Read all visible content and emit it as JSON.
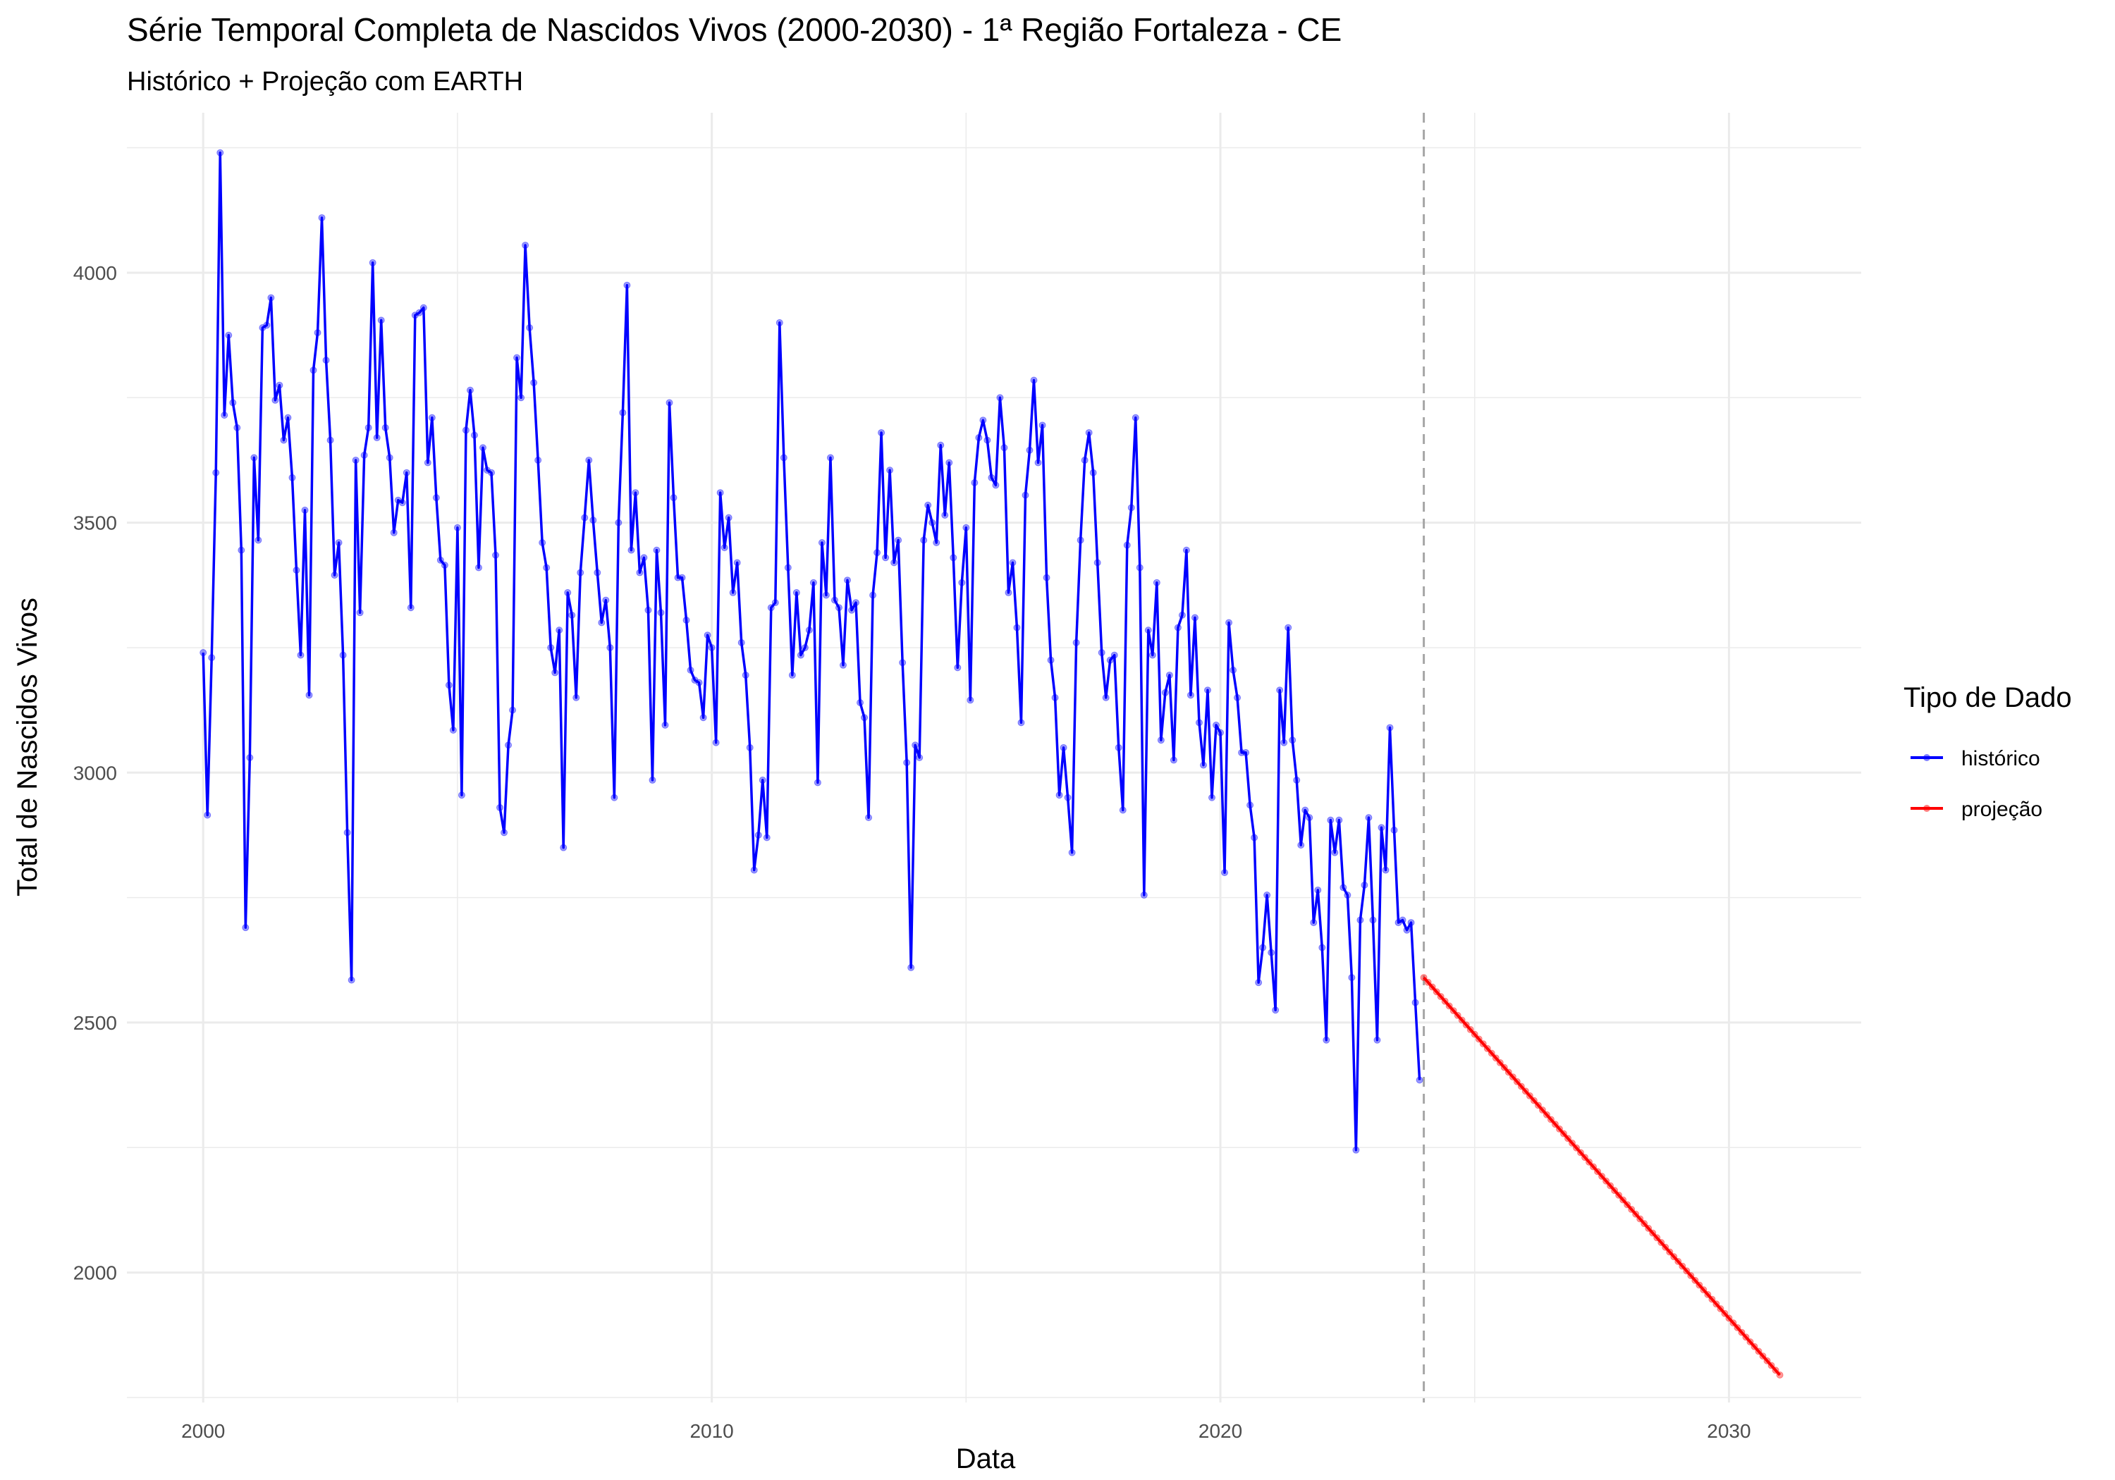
{
  "chart_data": {
    "type": "line",
    "title": "Série Temporal Completa de Nascidos Vivos (2000-2030) -  1ª Região Fortaleza - CE",
    "subtitle": "Histórico + Projeção com EARTH",
    "xlabel": "Data",
    "ylabel": "Total de Nascidos Vivos",
    "xlim": [
      1998.5,
      2032.6
    ],
    "ylim": [
      1740,
      4320
    ],
    "x_ticks": [
      2000,
      2010,
      2020,
      2030
    ],
    "x_tick_labels": [
      "2000",
      "2010",
      "2020",
      "2030"
    ],
    "y_ticks": [
      2000,
      2500,
      3000,
      3500,
      4000
    ],
    "y_tick_labels": [
      "2000",
      "2500",
      "3000",
      "3500",
      "4000"
    ],
    "grid": true,
    "legend_position": "right",
    "legend_title": "Tipo de Dado",
    "vline": {
      "x": 2024.0,
      "style": "dashed",
      "color": "#a6a6a6"
    },
    "series": [
      {
        "name": "histórico",
        "color": "#0000ff",
        "x_start": 2000.0,
        "x_step": 0.0833333,
        "values": [
          3240,
          2915,
          3230,
          3600,
          4240,
          3715,
          3875,
          3740,
          3690,
          3445,
          2690,
          3030,
          3630,
          3465,
          3890,
          3895,
          3950,
          3745,
          3775,
          3665,
          3710,
          3590,
          3405,
          3235,
          3525,
          3155,
          3805,
          3880,
          4110,
          3825,
          3665,
          3395,
          3460,
          3235,
          2880,
          2585,
          3625,
          3320,
          3635,
          3690,
          4020,
          3670,
          3905,
          3690,
          3630,
          3480,
          3545,
          3540,
          3600,
          3330,
          3915,
          3920,
          3930,
          3620,
          3710,
          3550,
          3425,
          3415,
          3175,
          3085,
          3490,
          2955,
          3685,
          3765,
          3675,
          3410,
          3650,
          3605,
          3600,
          3435,
          2930,
          2880,
          3055,
          3125,
          3830,
          3750,
          4055,
          3890,
          3780,
          3625,
          3460,
          3410,
          3250,
          3200,
          3285,
          2850,
          3360,
          3315,
          3150,
          3400,
          3510,
          3625,
          3505,
          3400,
          3300,
          3345,
          3250,
          2950,
          3500,
          3720,
          3975,
          3445,
          3560,
          3400,
          3430,
          3325,
          2985,
          3445,
          3320,
          3095,
          3740,
          3550,
          3390,
          3390,
          3305,
          3205,
          3185,
          3180,
          3110,
          3275,
          3250,
          3060,
          3560,
          3450,
          3510,
          3360,
          3420,
          3260,
          3195,
          3050,
          2805,
          2875,
          2985,
          2870,
          3330,
          3340,
          3900,
          3630,
          3410,
          3195,
          3360,
          3235,
          3250,
          3285,
          3380,
          2980,
          3460,
          3355,
          3630,
          3345,
          3330,
          3215,
          3385,
          3325,
          3340,
          3140,
          3110,
          2910,
          3355,
          3440,
          3680,
          3430,
          3605,
          3420,
          3465,
          3220,
          3020,
          2610,
          3055,
          3030,
          3465,
          3535,
          3500,
          3460,
          3655,
          3515,
          3620,
          3430,
          3210,
          3380,
          3490,
          3145,
          3580,
          3670,
          3705,
          3665,
          3590,
          3575,
          3750,
          3650,
          3360,
          3420,
          3290,
          3100,
          3555,
          3645,
          3785,
          3620,
          3695,
          3390,
          3225,
          3150,
          2955,
          3050,
          2950,
          2840,
          3260,
          3465,
          3625,
          3680,
          3600,
          3420,
          3240,
          3150,
          3225,
          3235,
          3050,
          2925,
          3455,
          3530,
          3710,
          3410,
          2755,
          3285,
          3235,
          3380,
          3065,
          3160,
          3195,
          3025,
          3290,
          3315,
          3445,
          3155,
          3310,
          3100,
          3015,
          3165,
          2950,
          3095,
          3080,
          2800,
          3300,
          3205,
          3150,
          3040,
          3040,
          2935,
          2870,
          2580,
          2650,
          2755,
          2640,
          2525,
          3165,
          3060,
          3290,
          3065,
          2985,
          2855,
          2925,
          2910,
          2700,
          2765,
          2650,
          2465,
          2905,
          2840,
          2905,
          2770,
          2755,
          2590,
          2245,
          2705,
          2775,
          2910,
          2705,
          2465,
          2890,
          2805,
          3090,
          2885,
          2700,
          2705,
          2685,
          2700,
          2540,
          2385
        ]
      },
      {
        "name": "projeção",
        "color": "#ff0000",
        "x_start": 2024.0,
        "x_step": 0.0833333,
        "x_end": 2031.0,
        "y_start": 2590,
        "y_end": 1795
      }
    ]
  }
}
